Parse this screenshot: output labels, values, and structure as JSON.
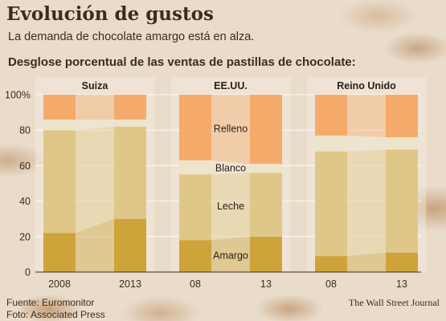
{
  "title": "Evolución de gustos",
  "subtitle": "La demanda de chocolate amargo está en alza.",
  "heading": "Desglose porcentual de las ventas de pastillas de chocolate:",
  "source_line1": "Fuente: Euromonitor",
  "source_line2": "Foto: Associated Press",
  "credit": "The Wall Street Journal",
  "colors": {
    "amargo": "#cda33a",
    "leche": "#dfc789",
    "blanco": "#ede4cc",
    "relleno": "#f5ab6c"
  },
  "chart_data": {
    "type": "bar",
    "stacked": true,
    "percent": true,
    "ylim": [
      0,
      100
    ],
    "yticks": [
      0,
      20,
      40,
      60,
      80,
      100
    ],
    "ytick_labels": [
      "0",
      "20",
      "40",
      "60",
      "80",
      "100%"
    ],
    "groups": [
      {
        "label": "Suiza",
        "categories": [
          "2008",
          "2013"
        ]
      },
      {
        "label": "EE.UU.",
        "categories": [
          "08",
          "13"
        ]
      },
      {
        "label": "Reino Unido",
        "categories": [
          "08",
          "13"
        ]
      }
    ],
    "series": [
      {
        "name": "Amargo",
        "key": "amargo",
        "values": [
          22,
          30,
          18,
          20,
          9,
          11
        ]
      },
      {
        "name": "Leche",
        "key": "leche",
        "values": [
          58,
          52,
          37,
          36,
          59,
          58
        ]
      },
      {
        "name": "Blanco",
        "key": "blanco",
        "values": [
          6,
          4,
          8,
          5,
          9,
          7
        ]
      },
      {
        "name": "Relleno",
        "key": "relleno",
        "values": [
          14,
          14,
          37,
          39,
          23,
          24
        ]
      }
    ],
    "in_chart_labels": [
      "Amargo",
      "Leche",
      "Blanco",
      "Relleno"
    ]
  }
}
